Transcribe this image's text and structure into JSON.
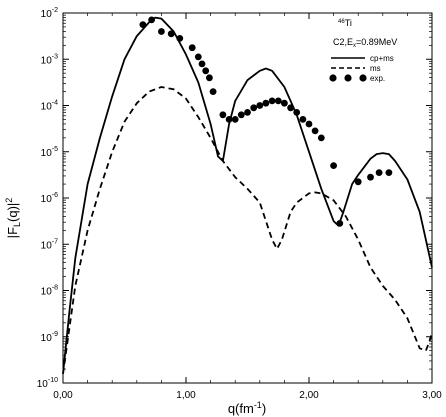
{
  "chart_data": {
    "type": "line",
    "xlabel_main": "q(fm",
    "xlabel_exp": "-1",
    "xlabel_close": ")",
    "ylabel_main": "|F",
    "ylabel_sub": "L",
    "ylabel_mid": "(q)|",
    "ylabel_exp": "2",
    "xlim": [
      0,
      3
    ],
    "ylim_log10": [
      -10,
      -2
    ],
    "log_y": true,
    "x_ticks": [
      {
        "value": 0,
        "label": "0,00"
      },
      {
        "value": 1,
        "label": "1,00"
      },
      {
        "value": 2,
        "label": "2,00"
      },
      {
        "value": 3,
        "label": "3,00"
      }
    ],
    "y_ticks": [
      {
        "exp": -2,
        "base": "10",
        "power": "-2"
      },
      {
        "exp": -3,
        "base": "10",
        "power": "-3"
      },
      {
        "exp": -4,
        "base": "10",
        "power": "-4"
      },
      {
        "exp": -5,
        "base": "10",
        "power": "-5"
      },
      {
        "exp": -6,
        "base": "10",
        "power": "-6"
      },
      {
        "exp": -7,
        "base": "10",
        "power": "-7"
      },
      {
        "exp": -8,
        "base": "10",
        "power": "-8"
      },
      {
        "exp": -9,
        "base": "10",
        "power": "-9"
      },
      {
        "exp": -10,
        "base": "10",
        "power": "-10"
      }
    ],
    "annotation": {
      "nucleus_mass": "46",
      "nucleus_symbol": "Ti",
      "line2_prefix": "C2,E",
      "line2_sub": "x",
      "line2_suffix": "=0.89MeV"
    },
    "legend_position": "top-right",
    "series": [
      {
        "name": "cp+ms",
        "style": "solid",
        "x": [
          0.0,
          0.05,
          0.1,
          0.2,
          0.3,
          0.4,
          0.5,
          0.6,
          0.7,
          0.75,
          0.8,
          0.9,
          1.0,
          1.1,
          1.2,
          1.26,
          1.3,
          1.35,
          1.4,
          1.5,
          1.6,
          1.65,
          1.7,
          1.8,
          1.9,
          2.0,
          2.1,
          2.2,
          2.24,
          2.28,
          2.35,
          2.4,
          2.5,
          2.55,
          2.6,
          2.65,
          2.7,
          2.8,
          2.9,
          3.0
        ],
        "log10": [
          -9.8,
          -8.5,
          -7.3,
          -5.7,
          -4.7,
          -3.8,
          -3.0,
          -2.5,
          -2.2,
          -2.1,
          -2.12,
          -2.4,
          -2.9,
          -3.5,
          -4.4,
          -5.1,
          -5.2,
          -4.4,
          -3.9,
          -3.45,
          -3.25,
          -3.2,
          -3.25,
          -3.6,
          -4.2,
          -5.0,
          -5.8,
          -6.5,
          -6.6,
          -6.3,
          -5.7,
          -5.5,
          -5.15,
          -5.05,
          -5.03,
          -5.05,
          -5.2,
          -5.6,
          -6.3,
          -7.5
        ]
      },
      {
        "name": "ms",
        "style": "dashed",
        "x": [
          0.0,
          0.1,
          0.2,
          0.3,
          0.4,
          0.5,
          0.6,
          0.7,
          0.8,
          0.9,
          1.0,
          1.1,
          1.2,
          1.3,
          1.4,
          1.5,
          1.6,
          1.7,
          1.74,
          1.78,
          1.85,
          1.9,
          2.0,
          2.05,
          2.1,
          2.2,
          2.3,
          2.4,
          2.5,
          2.6,
          2.7,
          2.8,
          2.9,
          2.95,
          2.98,
          3.0
        ],
        "log10": [
          -9.8,
          -7.9,
          -6.7,
          -5.8,
          -5.0,
          -4.35,
          -3.95,
          -3.7,
          -3.6,
          -3.65,
          -3.85,
          -4.25,
          -4.7,
          -5.2,
          -5.55,
          -5.8,
          -6.1,
          -6.9,
          -7.1,
          -6.9,
          -6.3,
          -6.1,
          -5.9,
          -5.88,
          -5.9,
          -6.05,
          -6.4,
          -6.9,
          -7.5,
          -7.9,
          -8.2,
          -8.6,
          -9.25,
          -9.3,
          -9.1,
          -8.9
        ]
      }
    ],
    "experimental": {
      "name": "exp.",
      "x": [
        0.65,
        0.72,
        0.8,
        0.88,
        0.95,
        1.05,
        1.1,
        1.13,
        1.16,
        1.19,
        1.22,
        1.3,
        1.35,
        1.4,
        1.45,
        1.5,
        1.55,
        1.6,
        1.65,
        1.7,
        1.75,
        1.8,
        1.85,
        1.9,
        1.95,
        2.0,
        2.05,
        2.1,
        2.2,
        2.25,
        2.4,
        2.5,
        2.57,
        2.65
      ],
      "log10": [
        -2.25,
        -2.15,
        -2.4,
        -2.45,
        -2.55,
        -2.75,
        -2.95,
        -3.1,
        -3.25,
        -3.4,
        -3.7,
        -4.2,
        -4.3,
        -4.3,
        -4.2,
        -4.15,
        -4.05,
        -4.0,
        -3.95,
        -3.9,
        -3.9,
        -3.95,
        -4.05,
        -4.15,
        -4.3,
        -4.4,
        -4.55,
        -4.7,
        -5.3,
        -6.55,
        -5.65,
        -5.55,
        -5.45,
        -5.45
      ]
    }
  }
}
